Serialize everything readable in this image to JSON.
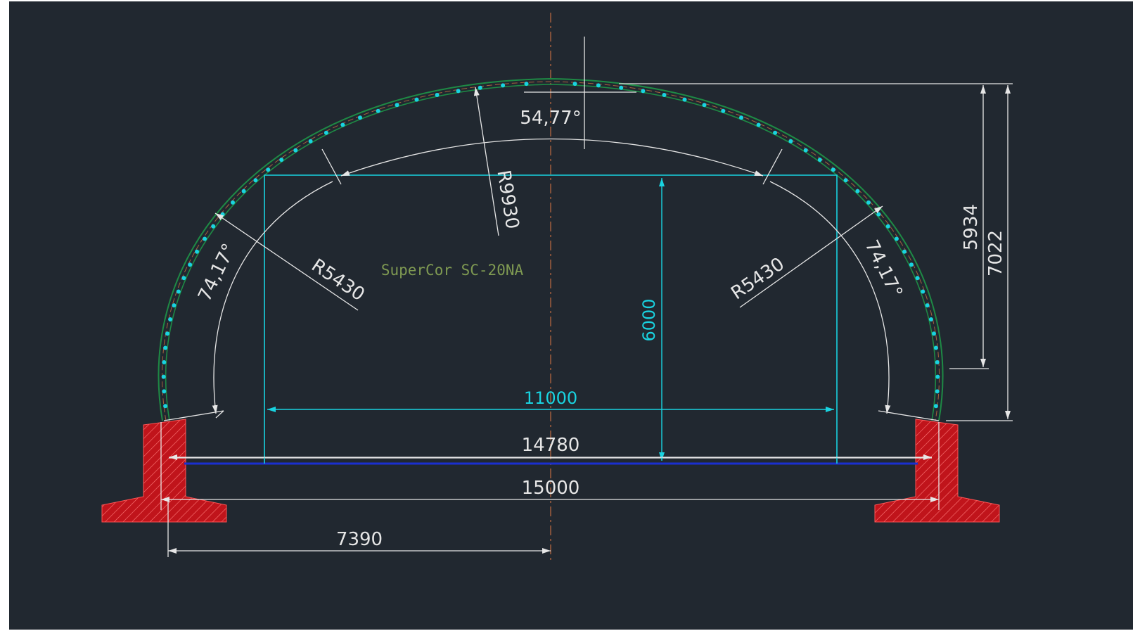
{
  "drawing": {
    "label": "SuperCor SC-20NA",
    "colors": {
      "background": "#212830",
      "dimension": "#e6e6e6",
      "clearance": "#19d3e0",
      "arch_outer": "#1e8a45",
      "foundation": "#c0141b",
      "base_line": "#1a2fd0",
      "centerline": "#a8623f",
      "label": "#7f9a52"
    },
    "dimensions": {
      "top_angle": "54,77°",
      "crown_radius": "R9930",
      "side_radius_left": "R5430",
      "side_radius_right": "R5430",
      "side_angle_left": "74,17°",
      "side_angle_right": "74,17°",
      "clearance_height": "6000",
      "clearance_width": "11000",
      "span_inner": "14780",
      "span_outer": "15000",
      "half_span": "7390",
      "rise_from_springline": "5934",
      "rise_total": "7022"
    }
  }
}
